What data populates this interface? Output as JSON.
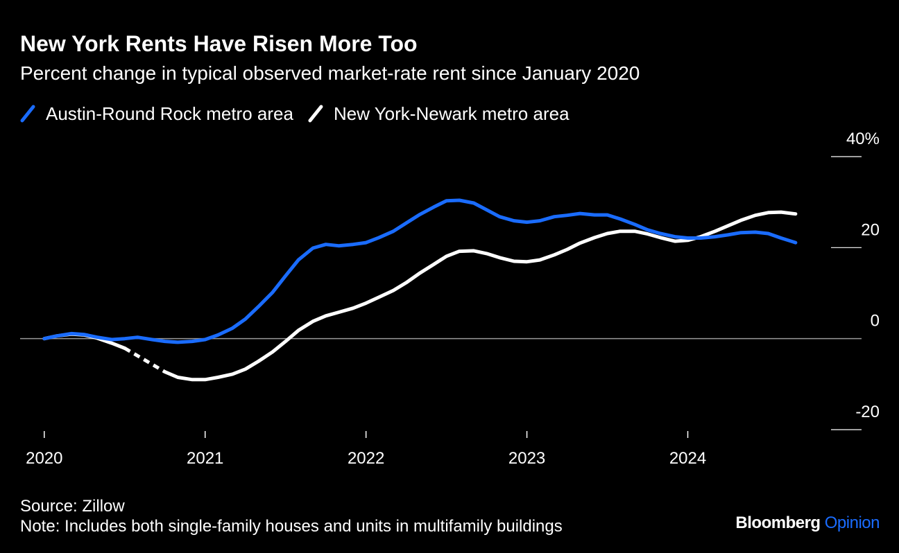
{
  "chart_data": {
    "type": "line",
    "title": "New York Rents Have Risen More Too",
    "subtitle": "Percent change in typical observed market-rate rent since January 2020",
    "source": "Source: Zillow",
    "note": "Note: Includes both single-family houses and units in multifamily buildings",
    "brand": "Bloomberg",
    "brand_suffix": "Opinion",
    "x": [
      2020,
      2020.08,
      2020.17,
      2020.25,
      2020.33,
      2020.42,
      2020.5,
      2020.58,
      2020.67,
      2020.75,
      2020.83,
      2020.92,
      2021,
      2021.08,
      2021.17,
      2021.25,
      2021.33,
      2021.42,
      2021.5,
      2021.58,
      2021.67,
      2021.75,
      2021.83,
      2021.92,
      2022,
      2022.08,
      2022.17,
      2022.25,
      2022.33,
      2022.42,
      2022.5,
      2022.58,
      2022.67,
      2022.75,
      2022.83,
      2022.92,
      2023,
      2023.08,
      2023.17,
      2023.25,
      2023.33,
      2023.42,
      2023.5,
      2023.58,
      2023.67,
      2023.75,
      2023.83,
      2023.92,
      2024,
      2024.08,
      2024.17,
      2024.25,
      2024.33,
      2024.42,
      2024.5,
      2024.58,
      2024.67
    ],
    "series": [
      {
        "name": "Austin-Round Rock metro area",
        "color": "#1a6cff",
        "values": [
          0,
          0.6,
          1.1,
          0.9,
          0.3,
          -0.2,
          0,
          0.3,
          -0.2,
          -0.6,
          -0.8,
          -0.6,
          -0.2,
          0.8,
          2.3,
          4.3,
          7,
          10.2,
          13.8,
          17.3,
          19.9,
          20.7,
          20.4,
          20.7,
          21.1,
          22.2,
          23.6,
          25.4,
          27.2,
          28.9,
          30.3,
          30.4,
          29.8,
          28.3,
          26.8,
          25.9,
          25.6,
          25.9,
          26.8,
          27.1,
          27.5,
          27.2,
          27.2,
          26.3,
          25.1,
          23.9,
          23.1,
          22.4,
          22.1,
          22.1,
          22.4,
          22.8,
          23.3,
          23.4,
          23.1,
          22.1,
          21.1
        ]
      },
      {
        "name": "New York-Newark metro area",
        "color": "#ffffff",
        "values": [
          0,
          0.6,
          1.0,
          0.8,
          0.1,
          -1.0,
          -2.1,
          null,
          null,
          -7.3,
          -8.5,
          -9.0,
          -9.0,
          -8.5,
          -7.8,
          -6.7,
          -5.0,
          -2.9,
          -0.6,
          1.8,
          3.8,
          5.0,
          5.8,
          6.7,
          7.8,
          9.1,
          10.6,
          12.3,
          14.3,
          16.3,
          18.1,
          19.2,
          19.3,
          18.7,
          17.8,
          17.0,
          16.9,
          17.3,
          18.4,
          19.6,
          21.0,
          22.2,
          23.1,
          23.6,
          23.6,
          23.0,
          22.2,
          21.4,
          21.6,
          22.4,
          23.6,
          24.8,
          26.0,
          27.1,
          27.7,
          27.8,
          27.4
        ]
      }
    ],
    "xlim": [
      2019.85,
      2025.08
    ],
    "xticks": [
      2020,
      2021,
      2022,
      2023,
      2024
    ],
    "ylim": [
      -20,
      40
    ],
    "yticks": [
      -20,
      0,
      20,
      {
        "value": 40,
        "label": "40%"
      }
    ],
    "grid": false
  }
}
